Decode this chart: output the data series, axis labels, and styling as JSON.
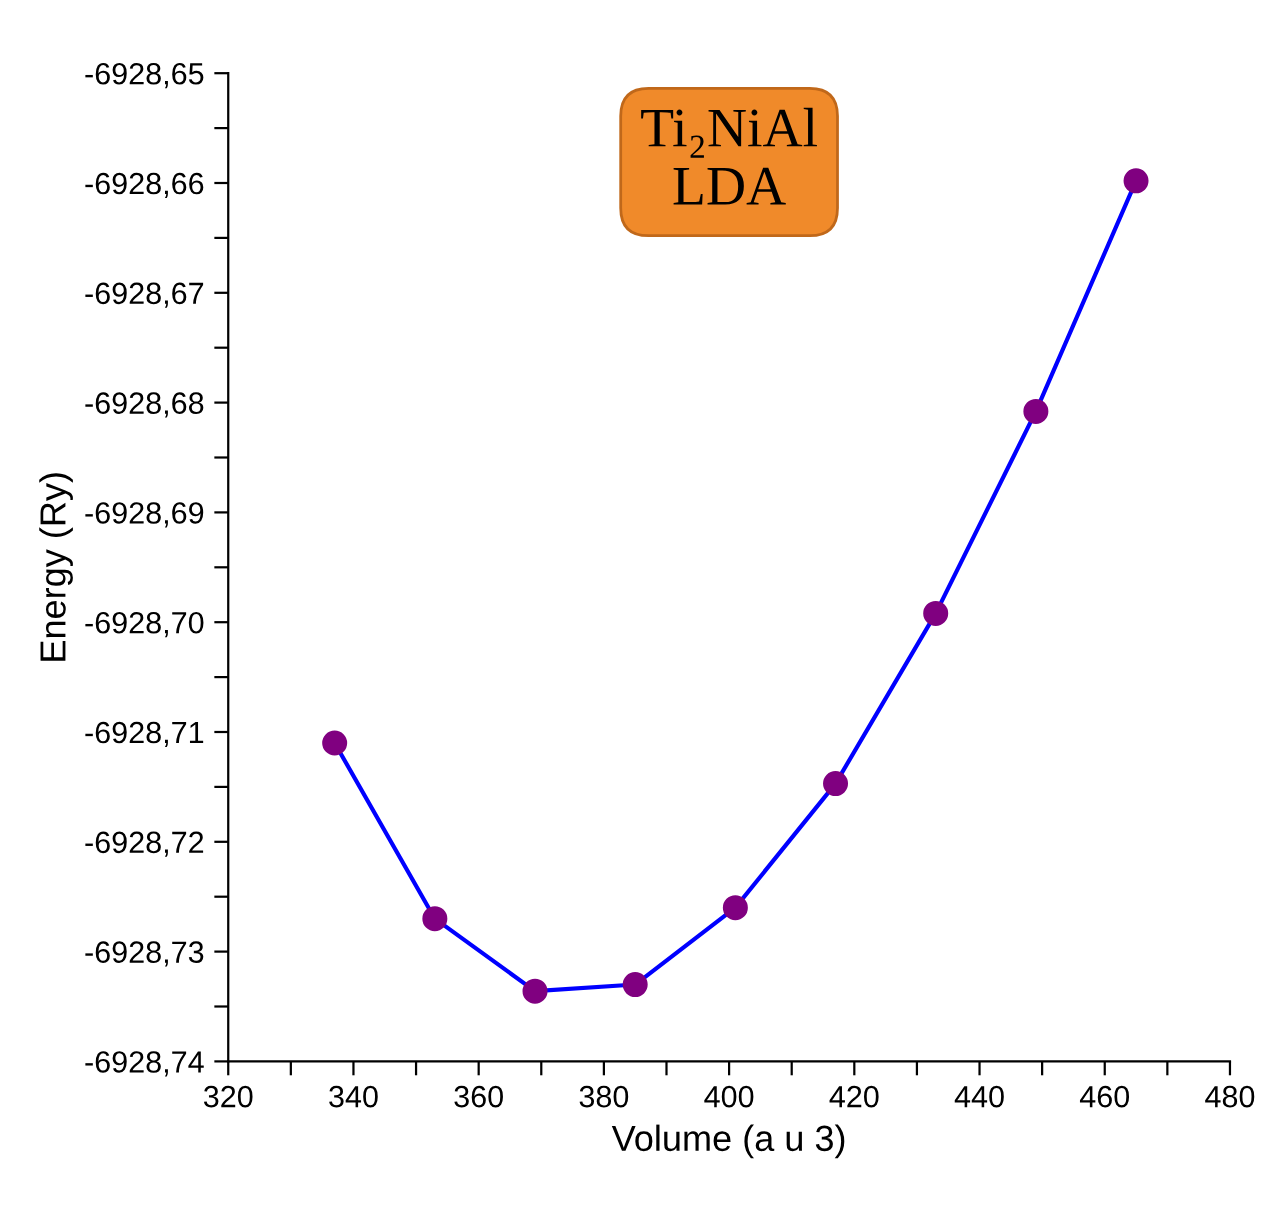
{
  "chart_data": {
    "type": "line",
    "title": "Ti₂NiAl\nLDA",
    "xlabel": "Volume (a u 3)",
    "ylabel": "Energy (Ry)",
    "x": [
      337,
      353,
      369,
      385,
      401,
      417,
      433,
      449,
      465
    ],
    "series": [
      {
        "color": "#0000ff",
        "colors": [
          "#800080",
          "#800080",
          "#800080",
          "#800080",
          "#800080",
          "#800080",
          "#800080",
          "#800080",
          "#800080"
        ],
        "values": [
          -6928.711,
          -6928.727,
          -6928.7336,
          -6928.733,
          -6928.726,
          -6928.7147,
          -6928.6992,
          -6928.6808,
          -6928.6598
        ]
      }
    ],
    "xlim": [
      320,
      480
    ],
    "ylim": [
      -6928.74,
      -6928.65
    ],
    "xticks": [
      320,
      {
        "value": 330,
        "label": null
      },
      340,
      {
        "value": 350,
        "label": null
      },
      360,
      {
        "value": 370,
        "label": null
      },
      380,
      {
        "value": 390,
        "label": null
      },
      400,
      {
        "value": 410,
        "label": null
      },
      420,
      {
        "value": 430,
        "label": null
      },
      440,
      {
        "value": 450,
        "label": null
      },
      460,
      {
        "value": 470,
        "label": null
      },
      480
    ],
    "yticks": [
      {
        "value": -6928.74,
        "label": "-6928,74"
      },
      {
        "value": -6928.735,
        "label": null
      },
      {
        "value": -6928.73,
        "label": "-6928,73"
      },
      {
        "value": -6928.725,
        "label": null
      },
      {
        "value": -6928.72,
        "label": "-6928,72"
      },
      {
        "value": -6928.715,
        "label": null
      },
      {
        "value": -6928.71,
        "label": "-6928,71"
      },
      {
        "value": -6928.705,
        "label": null
      },
      {
        "value": -6928.7,
        "label": "-6928,70"
      },
      {
        "value": -6928.695,
        "label": null
      },
      {
        "value": -6928.69,
        "label": "-6928,69"
      },
      {
        "value": -6928.685,
        "label": null
      },
      {
        "value": -6928.68,
        "label": "-6928,68"
      },
      {
        "value": -6928.675,
        "label": null
      },
      {
        "value": -6928.67,
        "label": "-6928,67"
      },
      {
        "value": -6928.665,
        "label": null
      },
      {
        "value": -6928.66,
        "label": "-6928,66"
      },
      {
        "value": -6928.655,
        "label": null
      },
      {
        "value": -6928.65,
        "label": "-6928,65"
      }
    ],
    "grid": false,
    "legend": false,
    "marker": "circle",
    "line_style": "solid"
  }
}
